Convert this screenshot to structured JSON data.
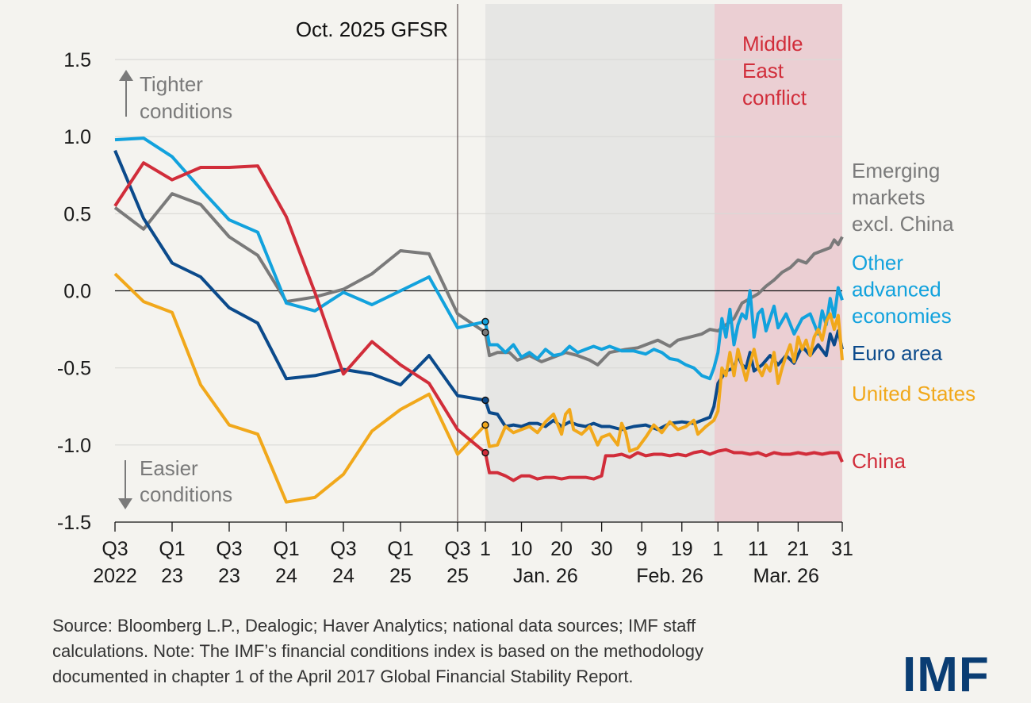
{
  "chart_data": {
    "type": "line",
    "title": "",
    "xlabel": "",
    "ylabel": "",
    "ylim": [
      -1.5,
      1.5
    ],
    "yticks": [
      "1.5",
      "1.0",
      "0.5",
      "0.0",
      "-0.5",
      "-1.0",
      "-1.5"
    ],
    "quarter_ticks": [
      [
        "Q3",
        "2022"
      ],
      [
        "Q1",
        "23"
      ],
      [
        "Q3",
        "23"
      ],
      [
        "Q1",
        "24"
      ],
      [
        "Q3",
        "24"
      ],
      [
        "Q1",
        "25"
      ],
      [
        "Q3",
        "25"
      ]
    ],
    "day_ticks": [
      "1",
      "10",
      "20",
      "30",
      "9",
      "19",
      "1",
      "11",
      "21",
      "31"
    ],
    "month_labels": [
      "Jan. 26",
      "Feb. 26",
      "Mar. 26"
    ],
    "annotations": {
      "gfsr": "Oct. 2025 GFSR",
      "conflict": [
        "Middle",
        "East",
        "conflict"
      ],
      "tighter": [
        "Tighter",
        "conditions"
      ],
      "easier": [
        "Easier",
        "conditions"
      ]
    },
    "colors": {
      "china": "#d12d3a",
      "em": "#7a7a7a",
      "oae": "#12a2dd",
      "euro": "#0b4a8b",
      "us": "#f1a81b",
      "conflict_band": "#ebcfd3",
      "daily_band": "#e6e6e4"
    },
    "series": [
      {
        "key": "em",
        "name": "Emerging markets excl. China",
        "label": [
          "Emerging",
          "markets",
          "excl. China"
        ],
        "quarterly": [
          0.54,
          0.4,
          0.63,
          0.56,
          0.35,
          0.23,
          -0.07,
          -0.04,
          0.01,
          0.11,
          0.26,
          0.24,
          -0.15
        ],
        "daily": [
          [
            0,
            -0.27
          ],
          [
            1,
            -0.42
          ],
          [
            3,
            -0.4
          ],
          [
            6,
            -0.4
          ],
          [
            8,
            -0.45
          ],
          [
            11,
            -0.42
          ],
          [
            14,
            -0.46
          ],
          [
            17,
            -0.43
          ],
          [
            20,
            -0.4
          ],
          [
            23,
            -0.42
          ],
          [
            26,
            -0.45
          ],
          [
            28,
            -0.48
          ],
          [
            31,
            -0.4
          ],
          [
            35,
            -0.38
          ],
          [
            38,
            -0.37
          ],
          [
            40,
            -0.35
          ],
          [
            43,
            -0.32
          ],
          [
            46,
            -0.36
          ],
          [
            48,
            -0.32
          ],
          [
            51,
            -0.3
          ],
          [
            54,
            -0.28
          ],
          [
            56,
            -0.25
          ],
          [
            58,
            -0.26
          ],
          [
            60,
            -0.22
          ],
          [
            62,
            -0.18
          ],
          [
            64,
            -0.08
          ],
          [
            66,
            -0.05
          ],
          [
            68,
            -0.02
          ],
          [
            70,
            0.03
          ],
          [
            72,
            0.07
          ],
          [
            74,
            0.12
          ],
          [
            76,
            0.15
          ],
          [
            78,
            0.2
          ],
          [
            80,
            0.18
          ],
          [
            82,
            0.24
          ],
          [
            84,
            0.26
          ],
          [
            86,
            0.28
          ],
          [
            87,
            0.33
          ],
          [
            88,
            0.3
          ],
          [
            89,
            0.35
          ]
        ]
      },
      {
        "key": "oae",
        "name": "Other advanced economies",
        "label": [
          "Other",
          "advanced",
          "economies"
        ],
        "quarterly": [
          0.98,
          0.99,
          0.87,
          0.66,
          0.46,
          0.38,
          -0.08,
          -0.13,
          -0.01,
          -0.09,
          0.0,
          0.09,
          -0.24
        ],
        "daily": [
          [
            0,
            -0.2
          ],
          [
            1,
            -0.35
          ],
          [
            3,
            -0.35
          ],
          [
            5,
            -0.4
          ],
          [
            7,
            -0.35
          ],
          [
            9,
            -0.43
          ],
          [
            11,
            -0.4
          ],
          [
            13,
            -0.44
          ],
          [
            15,
            -0.38
          ],
          [
            17,
            -0.42
          ],
          [
            19,
            -0.41
          ],
          [
            21,
            -0.36
          ],
          [
            23,
            -0.4
          ],
          [
            25,
            -0.38
          ],
          [
            27,
            -0.36
          ],
          [
            29,
            -0.38
          ],
          [
            31,
            -0.36
          ],
          [
            34,
            -0.39
          ],
          [
            37,
            -0.39
          ],
          [
            40,
            -0.41
          ],
          [
            42,
            -0.38
          ],
          [
            44,
            -0.4
          ],
          [
            46,
            -0.44
          ],
          [
            48,
            -0.45
          ],
          [
            50,
            -0.48
          ],
          [
            52,
            -0.5
          ],
          [
            54,
            -0.55
          ],
          [
            56,
            -0.57
          ],
          [
            57,
            -0.5
          ],
          [
            58,
            -0.4
          ],
          [
            59,
            -0.18
          ],
          [
            60,
            -0.3
          ],
          [
            61,
            -0.12
          ],
          [
            62,
            -0.35
          ],
          [
            63,
            -0.22
          ],
          [
            64,
            -0.15
          ],
          [
            65,
            -0.18
          ],
          [
            66,
            0.0
          ],
          [
            67,
            -0.3
          ],
          [
            68,
            -0.15
          ],
          [
            69,
            -0.12
          ],
          [
            70,
            -0.26
          ],
          [
            72,
            -0.1
          ],
          [
            73,
            -0.24
          ],
          [
            75,
            -0.15
          ],
          [
            77,
            -0.28
          ],
          [
            79,
            -0.18
          ],
          [
            81,
            -0.15
          ],
          [
            83,
            -0.28
          ],
          [
            84,
            -0.13
          ],
          [
            85,
            -0.22
          ],
          [
            86,
            -0.05
          ],
          [
            87,
            -0.17
          ],
          [
            88,
            0.02
          ],
          [
            89,
            -0.06
          ]
        ]
      },
      {
        "key": "euro",
        "name": "Euro area",
        "label": [
          "Euro area"
        ],
        "quarterly": [
          0.91,
          0.47,
          0.18,
          0.09,
          -0.11,
          -0.21,
          -0.57,
          -0.55,
          -0.51,
          -0.54,
          -0.61,
          -0.42,
          -0.68
        ],
        "daily": [
          [
            0,
            -0.71
          ],
          [
            1,
            -0.79
          ],
          [
            3,
            -0.8
          ],
          [
            5,
            -0.88
          ],
          [
            7,
            -0.87
          ],
          [
            9,
            -0.88
          ],
          [
            11,
            -0.86
          ],
          [
            13,
            -0.86
          ],
          [
            15,
            -0.88
          ],
          [
            17,
            -0.84
          ],
          [
            19,
            -0.88
          ],
          [
            21,
            -0.85
          ],
          [
            23,
            -0.87
          ],
          [
            25,
            -0.88
          ],
          [
            27,
            -0.86
          ],
          [
            29,
            -0.88
          ],
          [
            31,
            -0.88
          ],
          [
            34,
            -0.9
          ],
          [
            37,
            -0.88
          ],
          [
            40,
            -0.87
          ],
          [
            43,
            -0.9
          ],
          [
            46,
            -0.86
          ],
          [
            49,
            -0.85
          ],
          [
            52,
            -0.86
          ],
          [
            54,
            -0.84
          ],
          [
            56,
            -0.82
          ],
          [
            57,
            -0.75
          ],
          [
            58,
            -0.6
          ],
          [
            60,
            -0.52
          ],
          [
            62,
            -0.5
          ],
          [
            63,
            -0.42
          ],
          [
            64,
            -0.48
          ],
          [
            65,
            -0.5
          ],
          [
            66,
            -0.4
          ],
          [
            67,
            -0.52
          ],
          [
            69,
            -0.48
          ],
          [
            71,
            -0.42
          ],
          [
            73,
            -0.48
          ],
          [
            75,
            -0.42
          ],
          [
            77,
            -0.47
          ],
          [
            79,
            -0.36
          ],
          [
            81,
            -0.42
          ],
          [
            83,
            -0.35
          ],
          [
            85,
            -0.42
          ],
          [
            86,
            -0.28
          ],
          [
            87,
            -0.35
          ],
          [
            88,
            -0.26
          ],
          [
            89,
            -0.38
          ]
        ]
      },
      {
        "key": "us",
        "name": "United States",
        "label": [
          "United States"
        ],
        "quarterly": [
          0.11,
          -0.07,
          -0.14,
          -0.61,
          -0.87,
          -0.93,
          -1.37,
          -1.34,
          -1.19,
          -0.91,
          -0.77,
          -0.67,
          -1.06
        ],
        "daily": [
          [
            0,
            -0.87
          ],
          [
            1,
            -1.01
          ],
          [
            3,
            -1.0
          ],
          [
            5,
            -0.88
          ],
          [
            7,
            -0.92
          ],
          [
            9,
            -0.9
          ],
          [
            11,
            -0.88
          ],
          [
            13,
            -0.92
          ],
          [
            15,
            -0.85
          ],
          [
            17,
            -0.8
          ],
          [
            19,
            -0.93
          ],
          [
            20,
            -0.8
          ],
          [
            21,
            -0.77
          ],
          [
            22,
            -0.9
          ],
          [
            24,
            -0.93
          ],
          [
            26,
            -0.88
          ],
          [
            28,
            -1.0
          ],
          [
            29,
            -0.95
          ],
          [
            31,
            -0.93
          ],
          [
            33,
            -1.0
          ],
          [
            34,
            -0.86
          ],
          [
            35,
            -0.92
          ],
          [
            36,
            -1.04
          ],
          [
            38,
            -1.02
          ],
          [
            40,
            -0.95
          ],
          [
            42,
            -0.87
          ],
          [
            44,
            -0.92
          ],
          [
            46,
            -0.85
          ],
          [
            48,
            -0.9
          ],
          [
            50,
            -0.88
          ],
          [
            52,
            -0.84
          ],
          [
            53,
            -0.93
          ],
          [
            55,
            -0.88
          ],
          [
            57,
            -0.84
          ],
          [
            58,
            -0.78
          ],
          [
            59,
            -0.5
          ],
          [
            60,
            -0.55
          ],
          [
            61,
            -0.4
          ],
          [
            62,
            -0.55
          ],
          [
            63,
            -0.38
          ],
          [
            64,
            -0.48
          ],
          [
            65,
            -0.58
          ],
          [
            66,
            -0.47
          ],
          [
            67,
            -0.38
          ],
          [
            68,
            -0.5
          ],
          [
            69,
            -0.55
          ],
          [
            70,
            -0.48
          ],
          [
            71,
            -0.52
          ],
          [
            72,
            -0.4
          ],
          [
            73,
            -0.6
          ],
          [
            74,
            -0.5
          ],
          [
            75,
            -0.42
          ],
          [
            76,
            -0.35
          ],
          [
            77,
            -0.46
          ],
          [
            78,
            -0.3
          ],
          [
            79,
            -0.38
          ],
          [
            80,
            -0.32
          ],
          [
            81,
            -0.42
          ],
          [
            82,
            -0.3
          ],
          [
            83,
            -0.25
          ],
          [
            84,
            -0.32
          ],
          [
            85,
            -0.2
          ],
          [
            86,
            -0.15
          ],
          [
            87,
            -0.25
          ],
          [
            88,
            -0.16
          ],
          [
            89,
            -0.45
          ]
        ]
      },
      {
        "key": "china",
        "name": "China",
        "label": [
          "China"
        ],
        "quarterly": [
          0.55,
          0.83,
          0.72,
          0.8,
          0.8,
          0.81,
          0.48,
          -0.01,
          -0.54,
          -0.33,
          -0.48,
          -0.6,
          -0.9
        ],
        "daily": [
          [
            0,
            -1.05
          ],
          [
            1,
            -1.18
          ],
          [
            3,
            -1.18
          ],
          [
            5,
            -1.2
          ],
          [
            7,
            -1.23
          ],
          [
            9,
            -1.2
          ],
          [
            11,
            -1.2
          ],
          [
            13,
            -1.22
          ],
          [
            15,
            -1.21
          ],
          [
            17,
            -1.21
          ],
          [
            19,
            -1.22
          ],
          [
            21,
            -1.21
          ],
          [
            23,
            -1.21
          ],
          [
            25,
            -1.21
          ],
          [
            27,
            -1.22
          ],
          [
            29,
            -1.2
          ],
          [
            30,
            -1.07
          ],
          [
            32,
            -1.07
          ],
          [
            34,
            -1.06
          ],
          [
            36,
            -1.08
          ],
          [
            38,
            -1.05
          ],
          [
            40,
            -1.07
          ],
          [
            42,
            -1.06
          ],
          [
            44,
            -1.06
          ],
          [
            46,
            -1.07
          ],
          [
            48,
            -1.06
          ],
          [
            50,
            -1.07
          ],
          [
            52,
            -1.05
          ],
          [
            54,
            -1.04
          ],
          [
            56,
            -1.06
          ],
          [
            58,
            -1.04
          ],
          [
            60,
            -1.03
          ],
          [
            62,
            -1.05
          ],
          [
            64,
            -1.05
          ],
          [
            66,
            -1.06
          ],
          [
            68,
            -1.05
          ],
          [
            70,
            -1.07
          ],
          [
            72,
            -1.05
          ],
          [
            74,
            -1.06
          ],
          [
            76,
            -1.06
          ],
          [
            78,
            -1.05
          ],
          [
            80,
            -1.06
          ],
          [
            82,
            -1.05
          ],
          [
            84,
            -1.06
          ],
          [
            86,
            -1.05
          ],
          [
            88,
            -1.05
          ],
          [
            89,
            -1.11
          ]
        ]
      }
    ]
  },
  "footer": {
    "line1": "Source: Bloomberg L.P., Dealogic; Haver Analytics; national data sources; IMF staff",
    "line2": "calculations. Note: The IMF’s financial conditions index is based on the methodology",
    "line3": "documented in chapter 1 of the April 2017 Global Financial Stability Report.",
    "logo": "IMF"
  }
}
